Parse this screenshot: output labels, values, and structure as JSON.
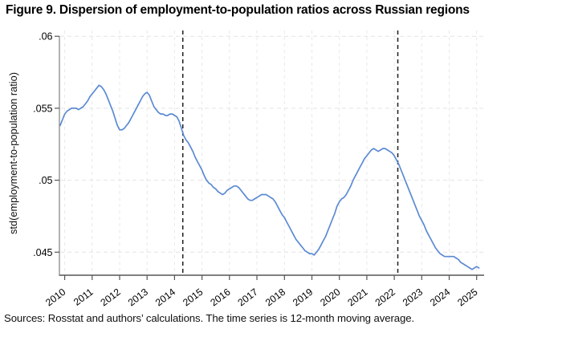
{
  "figure": {
    "title": "Figure 9. Dispersion of employment-to-population ratios across Russian regions",
    "caption": "Sources: Rosstat and authors’ calculations. The time series is 12-month moving average."
  },
  "colors": {
    "series_blue": "#5c8ad3",
    "reference_line": "#1c1c1c",
    "axis": "#808080",
    "grid": "#e4e4e4"
  },
  "chart_data": {
    "type": "line",
    "title": "",
    "xlabel": "",
    "ylabel": "std(employment-to-population ratio)",
    "grid": true,
    "legend": "none",
    "x_start": 2009.8333,
    "x_step": 0.0833,
    "x_unit": "monthly, 12-month moving average",
    "xlim": [
      2009.807,
      2025.272
    ],
    "ylim": [
      0.0434,
      0.0604
    ],
    "xticks": {
      "values": [
        2010,
        2011,
        2012,
        2013,
        2014,
        2015,
        2016,
        2017,
        2018,
        2019,
        2020,
        2021,
        2022,
        2023,
        2024,
        2025
      ],
      "labels": [
        "2010",
        "2011",
        "2012",
        "2013",
        "2014",
        "2015",
        "2016",
        "2017",
        "2018",
        "2019",
        "2020",
        "2021",
        "2022",
        "2023",
        "2024",
        "2025"
      ],
      "angle_deg": -37
    },
    "yticks": {
      "values": [
        0.045,
        0.05,
        0.055,
        0.06
      ],
      "labels": [
        ".045",
        ".05",
        ".055",
        ".06"
      ]
    },
    "vlines": [
      {
        "x": 2014.3,
        "style": "dashed",
        "color": "#1c1c1c",
        "meaning": "vertical reference line (2014)"
      },
      {
        "x": 2022.13,
        "style": "dashed",
        "color": "#1c1c1c",
        "meaning": "vertical reference line (early 2022)"
      }
    ],
    "series": [
      {
        "name": "std(employment-to-population ratio), 12-month MA",
        "color": "#5c8ad3",
        "values": [
          0.0538,
          0.0542,
          0.0546,
          0.0548,
          0.0549,
          0.055,
          0.055,
          0.055,
          0.0549,
          0.055,
          0.0551,
          0.0553,
          0.0555,
          0.0558,
          0.056,
          0.0562,
          0.0564,
          0.0566,
          0.0565,
          0.0563,
          0.056,
          0.0556,
          0.0552,
          0.0548,
          0.0543,
          0.0538,
          0.0535,
          0.0535,
          0.0536,
          0.0538,
          0.054,
          0.0543,
          0.0546,
          0.0549,
          0.0552,
          0.0555,
          0.0558,
          0.056,
          0.0561,
          0.0559,
          0.0555,
          0.0551,
          0.0549,
          0.0547,
          0.0546,
          0.0546,
          0.0545,
          0.0545,
          0.0546,
          0.0546,
          0.0545,
          0.0544,
          0.0541,
          0.0536,
          0.0531,
          0.0528,
          0.0526,
          0.0523,
          0.052,
          0.0516,
          0.0513,
          0.051,
          0.0507,
          0.0503,
          0.05,
          0.0498,
          0.0497,
          0.0495,
          0.0494,
          0.0492,
          0.0491,
          0.049,
          0.0491,
          0.0493,
          0.0494,
          0.0495,
          0.0496,
          0.0496,
          0.0495,
          0.0493,
          0.0491,
          0.0489,
          0.0487,
          0.0486,
          0.0486,
          0.0487,
          0.0488,
          0.0489,
          0.049,
          0.049,
          0.049,
          0.0489,
          0.0488,
          0.0487,
          0.0485,
          0.0482,
          0.0479,
          0.0476,
          0.0474,
          0.0471,
          0.0468,
          0.0465,
          0.0462,
          0.0459,
          0.0457,
          0.0455,
          0.0453,
          0.0451,
          0.045,
          0.0449,
          0.0449,
          0.0448,
          0.045,
          0.0452,
          0.0455,
          0.0458,
          0.0461,
          0.0465,
          0.0469,
          0.0473,
          0.0477,
          0.0482,
          0.0485,
          0.0487,
          0.0488,
          0.049,
          0.0493,
          0.0496,
          0.05,
          0.0503,
          0.0506,
          0.0509,
          0.0512,
          0.0515,
          0.0517,
          0.0519,
          0.0521,
          0.0522,
          0.0521,
          0.052,
          0.0521,
          0.0522,
          0.0522,
          0.0521,
          0.052,
          0.0519,
          0.0517,
          0.0514,
          0.0511,
          0.0507,
          0.0503,
          0.0499,
          0.0495,
          0.0491,
          0.0487,
          0.0483,
          0.0479,
          0.0475,
          0.0472,
          0.0469,
          0.0465,
          0.0462,
          0.0459,
          0.0456,
          0.0453,
          0.0451,
          0.0449,
          0.0448,
          0.0447,
          0.0447,
          0.0447,
          0.0447,
          0.0447,
          0.0446,
          0.0445,
          0.0443,
          0.0442,
          0.0441,
          0.044,
          0.0439,
          0.0438,
          0.0439,
          0.044,
          0.0439
        ]
      }
    ]
  }
}
